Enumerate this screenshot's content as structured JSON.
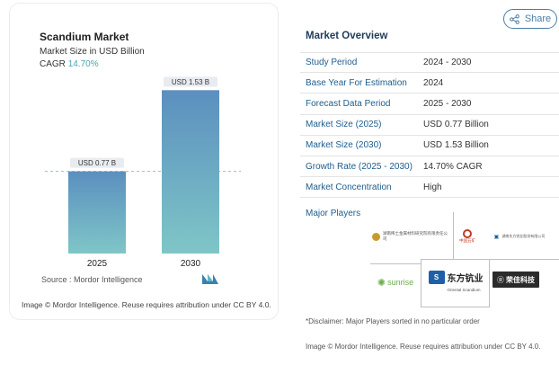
{
  "chart_data": {
    "type": "bar",
    "title": "Scandium Market",
    "subtitle": "Market Size in USD Billion",
    "cagr_label": "CAGR",
    "cagr_value": "14.70%",
    "categories": [
      "2025",
      "2030"
    ],
    "values": [
      0.77,
      1.53
    ],
    "data_labels": [
      "USD 0.77 B",
      "USD 1.53 B"
    ],
    "ylim": [
      0,
      1.6
    ],
    "grid": false,
    "reference_line": 0.77,
    "colors": {
      "bar_top": "#5b8fbf",
      "bar_bottom": "#7fc6c7",
      "label_bg": "#e8ecf0"
    }
  },
  "source": "Source :  Mordor Intelligence",
  "attribution_left": "Image © Mordor Intelligence. Reuse requires attribution under CC BY 4.0.",
  "share": {
    "label": "Share",
    "icon": "share-icon"
  },
  "overview": {
    "title": "Market Overview",
    "rows": [
      {
        "key": "Study Period",
        "value": "2024 - 2030"
      },
      {
        "key": "Base Year For Estimation",
        "value": "2024"
      },
      {
        "key": "Forecast Data Period",
        "value": "2025 - 2030"
      },
      {
        "key": "Market Size (2025)",
        "value": "USD 0.77 Billion"
      },
      {
        "key": "Market Size (2030)",
        "value": "USD 1.53 Billion"
      },
      {
        "key": "Growth Rate (2025 - 2030)",
        "value": "14.70% CAGR"
      },
      {
        "key": "Market Concentration",
        "value": "High"
      }
    ]
  },
  "players": {
    "label": "Major Players",
    "logos": [
      {
        "name": "湖南稀土金属材料研究院有限责任公司",
        "icon": "hunan-rare-earth-logo"
      },
      {
        "name": "中国五矿",
        "icon": "minmetals-logo"
      },
      {
        "name": "湖南东方钪业股份有限公司",
        "icon": "hunan-oriental-scandium-small-logo"
      },
      {
        "name": "sunrise",
        "icon": "sunrise-logo"
      },
      {
        "name": "东方钪业",
        "sub": "Oriental Scandium",
        "icon": "oriental-scandium-logo"
      },
      {
        "name": "荣佳科技",
        "icon": "rongjia-logo"
      }
    ]
  },
  "disclaimer": "*Disclaimer: Major Players sorted in no particular order",
  "attribution_right": "Image © Mordor Intelligence. Reuse requires attribution under CC BY 4.0."
}
